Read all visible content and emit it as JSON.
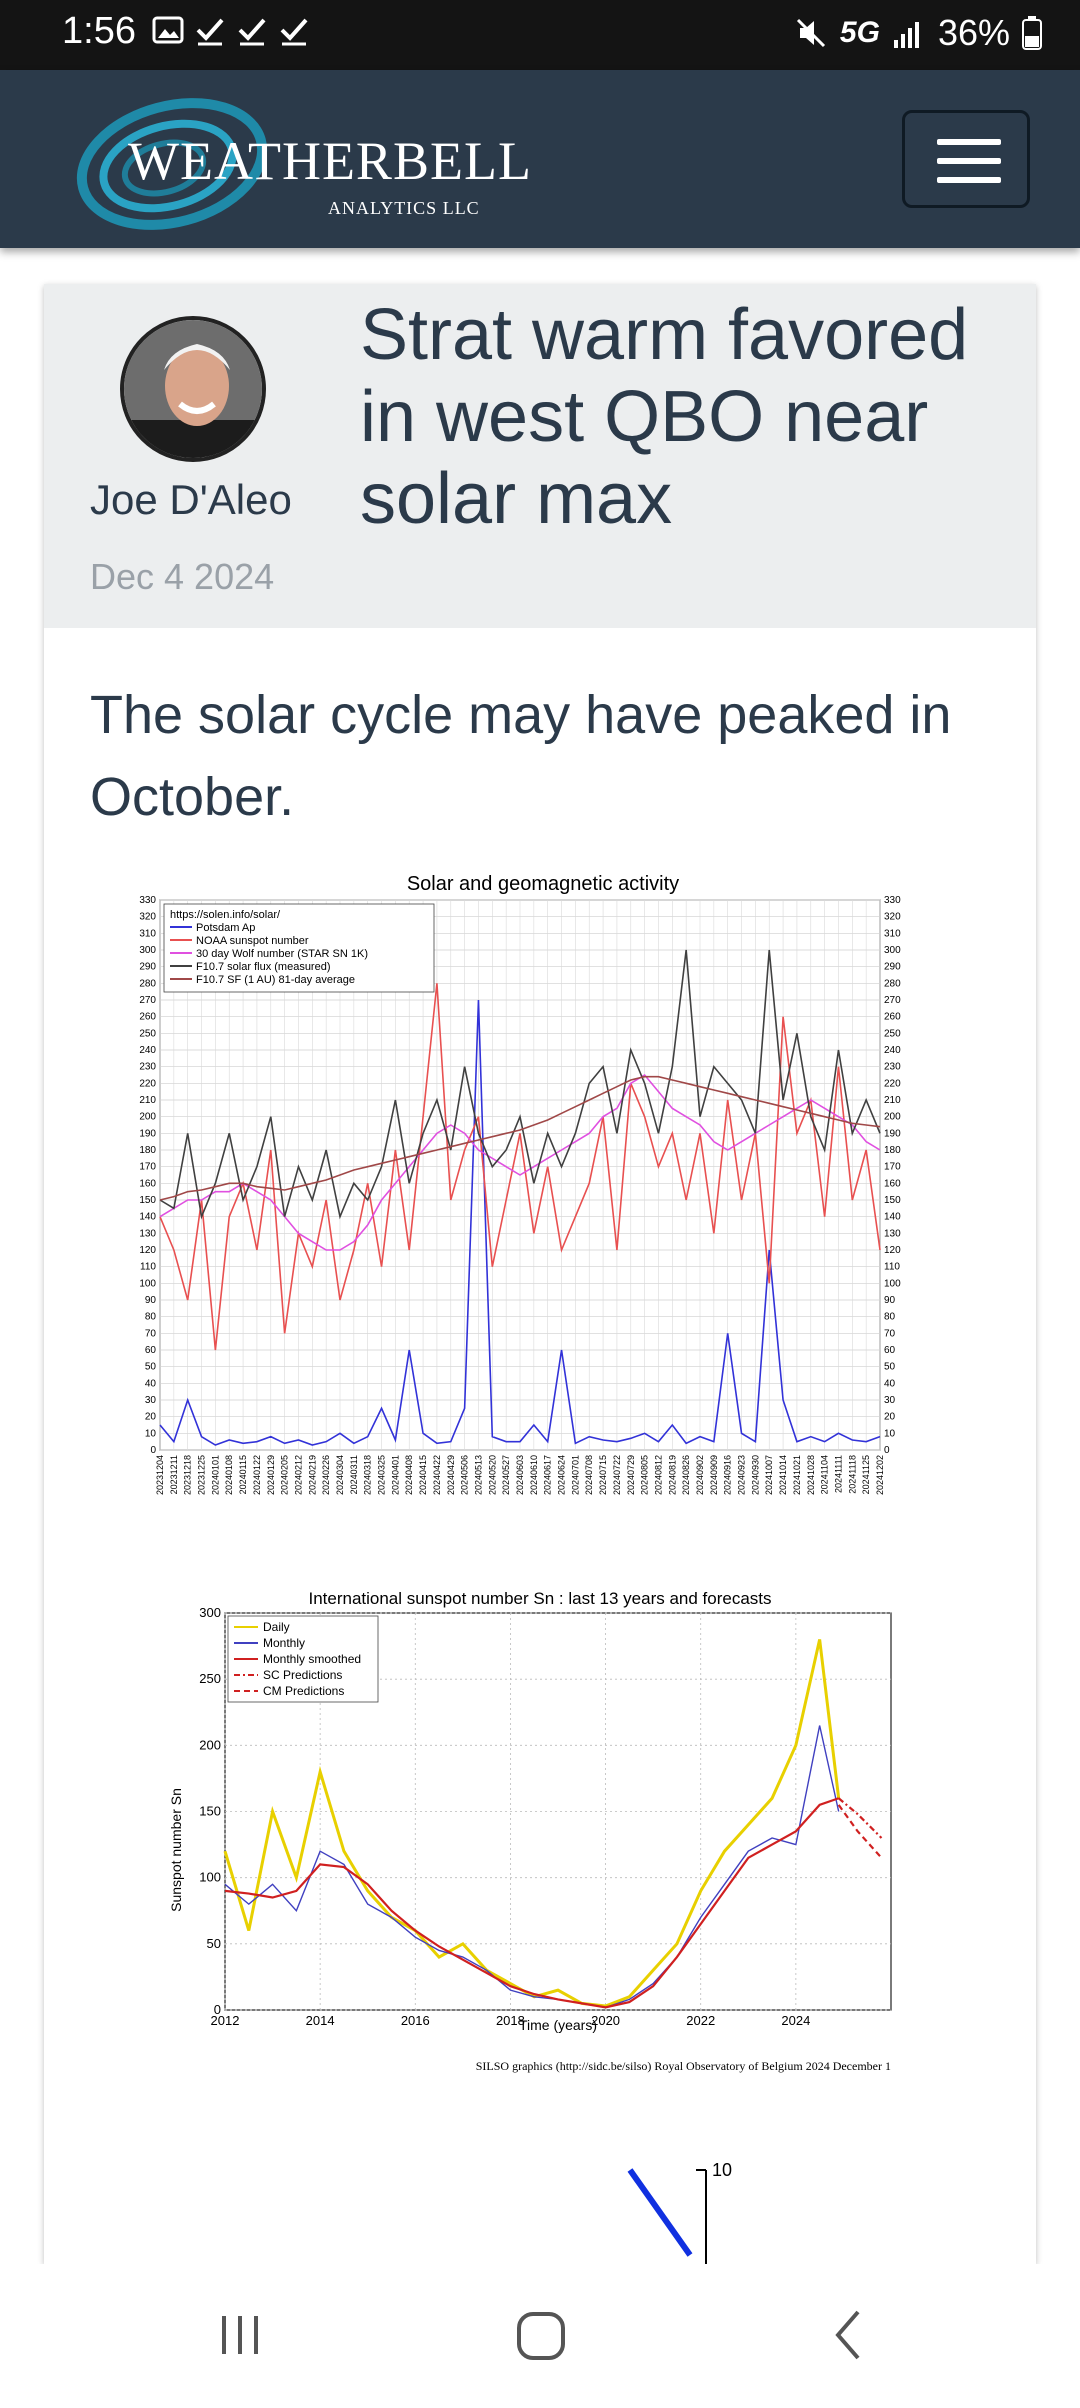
{
  "status_bar": {
    "time": "1:56",
    "network": "5G",
    "battery": "36%"
  },
  "navbar": {
    "logo_main": "WEATHERBELL",
    "logo_sub": "ANALYTICS LLC",
    "menu_icon": "hamburger-icon"
  },
  "post": {
    "author": "Joe D'Aleo",
    "date": "Dec 4 2024",
    "title": "Strat warm favored in west QBO near solar max",
    "lead": "The solar cycle may have peaked in October."
  },
  "chart_data": [
    {
      "type": "line",
      "title": "Solar and geomagnetic activity",
      "source_label": "https://solen.info/solar/",
      "ylim": [
        0,
        330
      ],
      "yticks": [
        0,
        10,
        20,
        30,
        40,
        50,
        60,
        70,
        80,
        90,
        100,
        110,
        120,
        130,
        140,
        150,
        160,
        170,
        180,
        190,
        200,
        210,
        220,
        230,
        240,
        250,
        260,
        270,
        280,
        290,
        300,
        310,
        320,
        330
      ],
      "x_tick_labels": [
        "20231204",
        "20231211",
        "20231218",
        "20231225",
        "20240101",
        "20240108",
        "20240115",
        "20240122",
        "20240129",
        "20240205",
        "20240212",
        "20240219",
        "20240226",
        "20240304",
        "20240311",
        "20240318",
        "20240325",
        "20240401",
        "20240408",
        "20240415",
        "20240422",
        "20240429",
        "20240506",
        "20240513",
        "20240520",
        "20240527",
        "20240603",
        "20240610",
        "20240617",
        "20240624",
        "20240701",
        "20240708",
        "20240715",
        "20240722",
        "20240729",
        "20240805",
        "20240812",
        "20240819",
        "20240826",
        "20240902",
        "20240909",
        "20240916",
        "20240923",
        "20240930",
        "20241007",
        "20241014",
        "20241021",
        "20241028",
        "20241104",
        "20241111",
        "20241118",
        "20241125",
        "20241202"
      ],
      "grid": true,
      "legend_position": "top-left",
      "series": [
        {
          "name": "Potsdam Ap",
          "color": "#3232d8",
          "values": [
            15,
            5,
            30,
            8,
            3,
            6,
            4,
            5,
            8,
            4,
            6,
            3,
            5,
            10,
            4,
            8,
            25,
            6,
            60,
            10,
            4,
            5,
            25,
            270,
            8,
            5,
            5,
            15,
            5,
            60,
            4,
            8,
            6,
            5,
            7,
            10,
            5,
            15,
            4,
            8,
            5,
            70,
            10,
            5,
            120,
            30,
            5,
            8,
            5,
            10,
            6,
            5,
            8
          ]
        },
        {
          "name": "NOAA sunspot number",
          "color": "#e85050",
          "values": [
            140,
            120,
            90,
            150,
            60,
            140,
            160,
            120,
            180,
            70,
            130,
            110,
            150,
            90,
            120,
            160,
            110,
            180,
            120,
            200,
            280,
            150,
            180,
            200,
            110,
            150,
            190,
            130,
            170,
            120,
            140,
            160,
            200,
            120,
            220,
            200,
            170,
            190,
            150,
            190,
            130,
            210,
            150,
            190,
            100,
            260,
            190,
            210,
            140,
            230,
            150,
            180,
            120
          ]
        },
        {
          "name": "30 day Wolf number (STAR SN 1K)",
          "color": "#e050e0",
          "values": [
            140,
            145,
            150,
            150,
            155,
            155,
            160,
            155,
            150,
            140,
            130,
            125,
            120,
            120,
            125,
            135,
            150,
            160,
            170,
            180,
            190,
            195,
            190,
            180,
            175,
            170,
            165,
            170,
            175,
            180,
            185,
            190,
            200,
            205,
            220,
            225,
            215,
            205,
            200,
            195,
            185,
            180,
            185,
            190,
            195,
            200,
            205,
            210,
            205,
            200,
            195,
            185,
            180
          ]
        },
        {
          "name": "F10.7 solar flux (measured)",
          "color": "#404040",
          "values": [
            150,
            145,
            190,
            140,
            160,
            190,
            150,
            170,
            200,
            140,
            170,
            150,
            180,
            140,
            160,
            150,
            170,
            210,
            160,
            190,
            210,
            180,
            230,
            190,
            170,
            180,
            200,
            160,
            190,
            170,
            190,
            220,
            230,
            190,
            240,
            220,
            190,
            230,
            300,
            200,
            230,
            220,
            210,
            190,
            300,
            210,
            250,
            200,
            180,
            240,
            190,
            210,
            190
          ]
        },
        {
          "name": "F10.7 SF (1 AU) 81-day average",
          "color": "#a04848",
          "values": [
            150,
            152,
            155,
            156,
            158,
            160,
            160,
            158,
            157,
            156,
            158,
            160,
            162,
            165,
            168,
            170,
            172,
            174,
            176,
            178,
            180,
            182,
            184,
            186,
            188,
            190,
            192,
            195,
            198,
            202,
            206,
            210,
            214,
            218,
            222,
            224,
            224,
            222,
            220,
            218,
            216,
            214,
            212,
            210,
            208,
            206,
            204,
            202,
            200,
            198,
            196,
            195,
            194
          ]
        }
      ]
    },
    {
      "type": "line",
      "title": "International sunspot number Sn : last 13 years and forecasts",
      "xlabel": "Time (years)",
      "ylabel": "Sunspot number Sn",
      "xlim": [
        2012,
        2026
      ],
      "ylim": [
        0,
        300
      ],
      "x_tick_labels": [
        "2012",
        "2014",
        "2016",
        "2018",
        "2020",
        "2022",
        "2024"
      ],
      "y_tick_labels": [
        "0",
        "50",
        "100",
        "150",
        "200",
        "250",
        "300"
      ],
      "credit": "SILSO graphics (http://sidc.be/silso)  Royal Observatory of Belgium  2024 December 1",
      "legend_position": "top-left",
      "series": [
        {
          "name": "Daily",
          "color": "#e8d000",
          "x": [
            2012,
            2012.5,
            2013,
            2013.5,
            2014,
            2014.5,
            2015,
            2015.5,
            2016,
            2016.5,
            2017,
            2017.5,
            2018,
            2018.5,
            2019,
            2019.5,
            2020,
            2020.5,
            2021,
            2021.5,
            2022,
            2022.5,
            2023,
            2023.5,
            2024,
            2024.5,
            2024.9
          ],
          "values": [
            120,
            60,
            150,
            100,
            180,
            120,
            90,
            70,
            60,
            40,
            50,
            30,
            20,
            10,
            15,
            5,
            3,
            10,
            30,
            50,
            90,
            120,
            140,
            160,
            200,
            280,
            160
          ]
        },
        {
          "name": "Monthly",
          "color": "#4040c0",
          "x": [
            2012,
            2012.5,
            2013,
            2013.5,
            2014,
            2014.5,
            2015,
            2015.5,
            2016,
            2016.5,
            2017,
            2017.5,
            2018,
            2018.5,
            2019,
            2019.5,
            2020,
            2020.5,
            2021,
            2021.5,
            2022,
            2022.5,
            2023,
            2023.5,
            2024,
            2024.5,
            2024.9
          ],
          "values": [
            95,
            80,
            95,
            75,
            120,
            110,
            80,
            70,
            55,
            45,
            40,
            30,
            15,
            10,
            8,
            5,
            2,
            8,
            20,
            40,
            70,
            95,
            120,
            130,
            125,
            215,
            150
          ]
        },
        {
          "name": "Monthly smoothed",
          "color": "#d02020",
          "x": [
            2012,
            2012.5,
            2013,
            2013.5,
            2014,
            2014.5,
            2015,
            2015.5,
            2016,
            2016.5,
            2017,
            2017.5,
            2018,
            2018.5,
            2019,
            2019.5,
            2020,
            2020.5,
            2021,
            2021.5,
            2022,
            2022.5,
            2023,
            2023.5,
            2024,
            2024.5,
            2024.9
          ],
          "values": [
            90,
            88,
            85,
            90,
            110,
            108,
            95,
            75,
            60,
            48,
            38,
            28,
            18,
            12,
            8,
            5,
            2,
            6,
            18,
            40,
            65,
            90,
            115,
            125,
            135,
            155,
            160
          ]
        },
        {
          "name": "SC Predictions",
          "color": "#d02020",
          "x": [
            2024.9,
            2025.3,
            2025.8
          ],
          "values": [
            160,
            148,
            130
          ]
        },
        {
          "name": "CM Predictions",
          "color": "#d02020",
          "x": [
            2024.9,
            2025.3,
            2025.8
          ],
          "values": [
            155,
            135,
            115
          ]
        }
      ]
    }
  ],
  "fig3_label": "10"
}
